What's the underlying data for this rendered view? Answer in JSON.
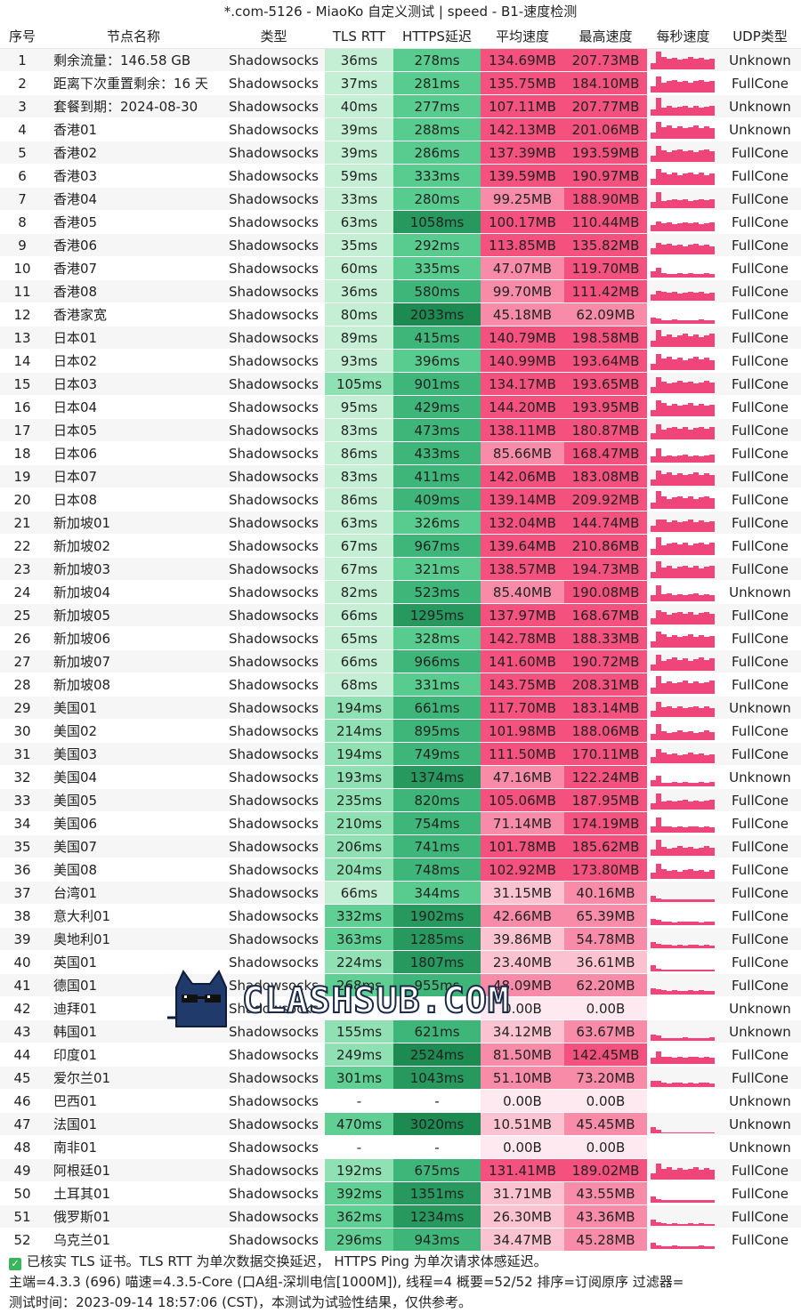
{
  "title": "*.com-5126 - MiaoKo 自定义测试 | speed - B1-速度检测",
  "headers": [
    "序号",
    "节点名称",
    "类型",
    "TLS RTT",
    "HTTPS延迟",
    "平均速度",
    "最高速度",
    "每秒速度",
    "UDP类型"
  ],
  "rows": [
    {
      "idx": "1",
      "name": "剩余流量：146.58 GB",
      "type": "Shadowsocks",
      "tls": "36ms",
      "https": "278ms",
      "avg": "134.69MB",
      "max": "207.73MB",
      "udp": "Unknown"
    },
    {
      "idx": "2",
      "name": "距离下次重置剩余：16 天",
      "type": "Shadowsocks",
      "tls": "37ms",
      "https": "281ms",
      "avg": "135.75MB",
      "max": "184.10MB",
      "udp": "FullCone"
    },
    {
      "idx": "3",
      "name": "套餐到期：2024-08-30",
      "type": "Shadowsocks",
      "tls": "40ms",
      "https": "277ms",
      "avg": "107.11MB",
      "max": "207.77MB",
      "udp": "Unknown"
    },
    {
      "idx": "4",
      "name": "香港01",
      "type": "Shadowsocks",
      "tls": "39ms",
      "https": "288ms",
      "avg": "142.13MB",
      "max": "201.06MB",
      "udp": "Unknown"
    },
    {
      "idx": "5",
      "name": "香港02",
      "type": "Shadowsocks",
      "tls": "39ms",
      "https": "286ms",
      "avg": "137.39MB",
      "max": "193.59MB",
      "udp": "FullCone"
    },
    {
      "idx": "6",
      "name": "香港03",
      "type": "Shadowsocks",
      "tls": "59ms",
      "https": "333ms",
      "avg": "139.59MB",
      "max": "190.97MB",
      "udp": "FullCone"
    },
    {
      "idx": "7",
      "name": "香港04",
      "type": "Shadowsocks",
      "tls": "33ms",
      "https": "280ms",
      "avg": "99.25MB",
      "max": "188.90MB",
      "udp": "FullCone"
    },
    {
      "idx": "8",
      "name": "香港05",
      "type": "Shadowsocks",
      "tls": "63ms",
      "https": "1058ms",
      "avg": "100.17MB",
      "max": "110.44MB",
      "udp": "FullCone"
    },
    {
      "idx": "9",
      "name": "香港06",
      "type": "Shadowsocks",
      "tls": "35ms",
      "https": "292ms",
      "avg": "113.85MB",
      "max": "135.82MB",
      "udp": "FullCone"
    },
    {
      "idx": "10",
      "name": "香港07",
      "type": "Shadowsocks",
      "tls": "60ms",
      "https": "335ms",
      "avg": "47.07MB",
      "max": "119.70MB",
      "udp": "FullCone"
    },
    {
      "idx": "11",
      "name": "香港08",
      "type": "Shadowsocks",
      "tls": "36ms",
      "https": "580ms",
      "avg": "99.70MB",
      "max": "111.42MB",
      "udp": "FullCone"
    },
    {
      "idx": "12",
      "name": "香港家宽",
      "type": "Shadowsocks",
      "tls": "80ms",
      "https": "2033ms",
      "avg": "45.18MB",
      "max": "62.09MB",
      "udp": "FullCone"
    },
    {
      "idx": "13",
      "name": "日本01",
      "type": "Shadowsocks",
      "tls": "89ms",
      "https": "415ms",
      "avg": "140.79MB",
      "max": "198.58MB",
      "udp": "FullCone"
    },
    {
      "idx": "14",
      "name": "日本02",
      "type": "Shadowsocks",
      "tls": "93ms",
      "https": "396ms",
      "avg": "140.99MB",
      "max": "193.64MB",
      "udp": "FullCone"
    },
    {
      "idx": "15",
      "name": "日本03",
      "type": "Shadowsocks",
      "tls": "105ms",
      "https": "901ms",
      "avg": "134.17MB",
      "max": "193.65MB",
      "udp": "FullCone"
    },
    {
      "idx": "16",
      "name": "日本04",
      "type": "Shadowsocks",
      "tls": "95ms",
      "https": "429ms",
      "avg": "144.20MB",
      "max": "193.95MB",
      "udp": "FullCone"
    },
    {
      "idx": "17",
      "name": "日本05",
      "type": "Shadowsocks",
      "tls": "83ms",
      "https": "473ms",
      "avg": "138.11MB",
      "max": "180.87MB",
      "udp": "FullCone"
    },
    {
      "idx": "18",
      "name": "日本06",
      "type": "Shadowsocks",
      "tls": "86ms",
      "https": "433ms",
      "avg": "85.66MB",
      "max": "168.47MB",
      "udp": "FullCone"
    },
    {
      "idx": "19",
      "name": "日本07",
      "type": "Shadowsocks",
      "tls": "83ms",
      "https": "411ms",
      "avg": "142.06MB",
      "max": "183.08MB",
      "udp": "FullCone"
    },
    {
      "idx": "20",
      "name": "日本08",
      "type": "Shadowsocks",
      "tls": "86ms",
      "https": "409ms",
      "avg": "139.14MB",
      "max": "209.92MB",
      "udp": "FullCone"
    },
    {
      "idx": "21",
      "name": "新加坡01",
      "type": "Shadowsocks",
      "tls": "63ms",
      "https": "326ms",
      "avg": "132.04MB",
      "max": "144.74MB",
      "udp": "FullCone"
    },
    {
      "idx": "22",
      "name": "新加坡02",
      "type": "Shadowsocks",
      "tls": "67ms",
      "https": "967ms",
      "avg": "139.64MB",
      "max": "210.86MB",
      "udp": "FullCone"
    },
    {
      "idx": "23",
      "name": "新加坡03",
      "type": "Shadowsocks",
      "tls": "67ms",
      "https": "321ms",
      "avg": "138.57MB",
      "max": "194.73MB",
      "udp": "FullCone"
    },
    {
      "idx": "24",
      "name": "新加坡04",
      "type": "Shadowsocks",
      "tls": "82ms",
      "https": "523ms",
      "avg": "85.40MB",
      "max": "190.08MB",
      "udp": "Unknown"
    },
    {
      "idx": "25",
      "name": "新加坡05",
      "type": "Shadowsocks",
      "tls": "66ms",
      "https": "1295ms",
      "avg": "137.97MB",
      "max": "168.67MB",
      "udp": "FullCone"
    },
    {
      "idx": "26",
      "name": "新加坡06",
      "type": "Shadowsocks",
      "tls": "65ms",
      "https": "328ms",
      "avg": "142.78MB",
      "max": "188.33MB",
      "udp": "FullCone"
    },
    {
      "idx": "27",
      "name": "新加坡07",
      "type": "Shadowsocks",
      "tls": "66ms",
      "https": "966ms",
      "avg": "141.60MB",
      "max": "190.72MB",
      "udp": "FullCone"
    },
    {
      "idx": "28",
      "name": "新加坡08",
      "type": "Shadowsocks",
      "tls": "68ms",
      "https": "331ms",
      "avg": "143.75MB",
      "max": "208.31MB",
      "udp": "FullCone"
    },
    {
      "idx": "29",
      "name": "美国01",
      "type": "Shadowsocks",
      "tls": "194ms",
      "https": "661ms",
      "avg": "117.70MB",
      "max": "183.14MB",
      "udp": "Unknown"
    },
    {
      "idx": "30",
      "name": "美国02",
      "type": "Shadowsocks",
      "tls": "214ms",
      "https": "895ms",
      "avg": "101.98MB",
      "max": "188.06MB",
      "udp": "FullCone"
    },
    {
      "idx": "31",
      "name": "美国03",
      "type": "Shadowsocks",
      "tls": "194ms",
      "https": "749ms",
      "avg": "111.50MB",
      "max": "170.11MB",
      "udp": "FullCone"
    },
    {
      "idx": "32",
      "name": "美国04",
      "type": "Shadowsocks",
      "tls": "193ms",
      "https": "1374ms",
      "avg": "47.16MB",
      "max": "122.24MB",
      "udp": "Unknown"
    },
    {
      "idx": "33",
      "name": "美国05",
      "type": "Shadowsocks",
      "tls": "235ms",
      "https": "820ms",
      "avg": "105.06MB",
      "max": "187.95MB",
      "udp": "FullCone"
    },
    {
      "idx": "34",
      "name": "美国06",
      "type": "Shadowsocks",
      "tls": "210ms",
      "https": "754ms",
      "avg": "71.14MB",
      "max": "174.19MB",
      "udp": "FullCone"
    },
    {
      "idx": "35",
      "name": "美国07",
      "type": "Shadowsocks",
      "tls": "206ms",
      "https": "741ms",
      "avg": "101.78MB",
      "max": "185.62MB",
      "udp": "FullCone"
    },
    {
      "idx": "36",
      "name": "美国08",
      "type": "Shadowsocks",
      "tls": "204ms",
      "https": "748ms",
      "avg": "102.92MB",
      "max": "173.80MB",
      "udp": "FullCone"
    },
    {
      "idx": "37",
      "name": "台湾01",
      "type": "Shadowsocks",
      "tls": "66ms",
      "https": "344ms",
      "avg": "31.15MB",
      "max": "40.16MB",
      "udp": "FullCone"
    },
    {
      "idx": "38",
      "name": "意大利01",
      "type": "Shadowsocks",
      "tls": "332ms",
      "https": "1902ms",
      "avg": "42.66MB",
      "max": "65.39MB",
      "udp": "FullCone"
    },
    {
      "idx": "39",
      "name": "奥地利01",
      "type": "Shadowsocks",
      "tls": "363ms",
      "https": "1285ms",
      "avg": "39.86MB",
      "max": "54.78MB",
      "udp": "FullCone"
    },
    {
      "idx": "40",
      "name": "英国01",
      "type": "Shadowsocks",
      "tls": "224ms",
      "https": "1807ms",
      "avg": "23.40MB",
      "max": "36.61MB",
      "udp": "FullCone"
    },
    {
      "idx": "41",
      "name": "德国01",
      "type": "Shadowsocks",
      "tls": "268ms",
      "https": "955ms",
      "avg": "48.09MB",
      "max": "62.20MB",
      "udp": "FullCone"
    },
    {
      "idx": "42",
      "name": "迪拜01",
      "type": "Shadowsocks",
      "tls": "",
      "https": "",
      "avg": "0.00B",
      "max": "0.00B",
      "udp": "Unknown"
    },
    {
      "idx": "43",
      "name": "韩国01",
      "type": "Shadowsocks",
      "tls": "155ms",
      "https": "621ms",
      "avg": "34.12MB",
      "max": "63.67MB",
      "udp": "Unknown"
    },
    {
      "idx": "44",
      "name": "印度01",
      "type": "Shadowsocks",
      "tls": "249ms",
      "https": "2524ms",
      "avg": "81.50MB",
      "max": "142.45MB",
      "udp": "FullCone"
    },
    {
      "idx": "45",
      "name": "爱尔兰01",
      "type": "Shadowsocks",
      "tls": "301ms",
      "https": "1043ms",
      "avg": "51.10MB",
      "max": "73.20MB",
      "udp": "FullCone"
    },
    {
      "idx": "46",
      "name": "巴西01",
      "type": "Shadowsocks",
      "tls": "-",
      "https": "-",
      "avg": "0.00B",
      "max": "0.00B",
      "udp": "Unknown"
    },
    {
      "idx": "47",
      "name": "法国01",
      "type": "Shadowsocks",
      "tls": "470ms",
      "https": "3020ms",
      "avg": "10.51MB",
      "max": "45.45MB",
      "udp": "Unknown"
    },
    {
      "idx": "48",
      "name": "南非01",
      "type": "Shadowsocks",
      "tls": "-",
      "https": "-",
      "avg": "0.00B",
      "max": "0.00B",
      "udp": "Unknown"
    },
    {
      "idx": "49",
      "name": "阿根廷01",
      "type": "Shadowsocks",
      "tls": "192ms",
      "https": "675ms",
      "avg": "131.41MB",
      "max": "189.02MB",
      "udp": "FullCone"
    },
    {
      "idx": "50",
      "name": "土耳其01",
      "type": "Shadowsocks",
      "tls": "392ms",
      "https": "1351ms",
      "avg": "31.71MB",
      "max": "43.55MB",
      "udp": "FullCone"
    },
    {
      "idx": "51",
      "name": "俄罗斯01",
      "type": "Shadowsocks",
      "tls": "362ms",
      "https": "1234ms",
      "avg": "26.30MB",
      "max": "43.36MB",
      "udp": "FullCone"
    },
    {
      "idx": "52",
      "name": "乌克兰01",
      "type": "Shadowsocks",
      "tls": "296ms",
      "https": "943ms",
      "avg": "34.47MB",
      "max": "45.28MB",
      "udp": "FullCone"
    }
  ],
  "footer": {
    "line1": "已核实 TLS 证书。TLS RTT 为单次数据交换延迟， HTTPS Ping 为单次请求体感延迟。",
    "line2": "主端=4.3.3 (696) 喵速=4.3.5-Core (口A组-深圳电信[1000M]), 线程=4 概要=52/52 排序=订阅原序 过滤器=",
    "line3": "测试时间：2023-09-14 18:57:06 (CST)，本测试为试验性结果，仅供参考。"
  },
  "watermark": {
    "text": "CLASHSUB.COM",
    "icon": "cat-sunglasses-icon"
  },
  "colors": {
    "tls_light": "#c4efd5",
    "tls_mid": "#8fe0b2",
    "tls_dark": "#5fcf93",
    "https_light": "#58cc8e",
    "https_mid": "#3fb679",
    "https_dark": "#27995f",
    "https_darker": "#1d8a52",
    "speed_high": "#f4517f",
    "speed_mid": "#f78ba8",
    "speed_low": "#fbc3d2",
    "speed_zero": "#fde9ef",
    "bar": "#f0457a"
  }
}
